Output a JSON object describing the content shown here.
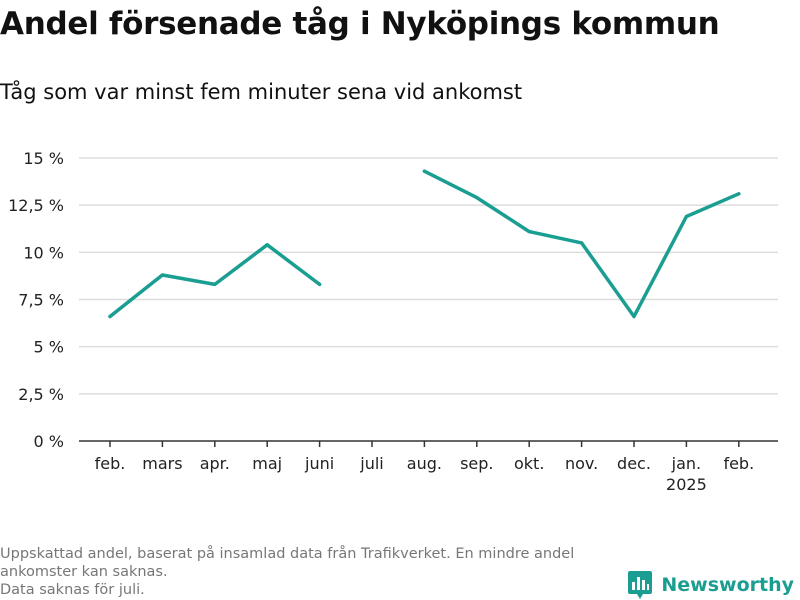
{
  "title": "Andel försenade tåg i Nyköpings kommun",
  "subtitle": "Tåg som var minst fem minuter sena vid ankomst",
  "footnote": {
    "line1": "Uppskattad andel, baserat på insamlad data från Trafikverket. En mindre andel",
    "line2": "ankomster kan saknas.",
    "line3": "Data saknas för juli."
  },
  "brand": {
    "name": "Newsworthy",
    "icon": "bar-chart-logo-icon",
    "color": "#1a9e91"
  },
  "chart_data": {
    "type": "line",
    "title": "Andel försenade tåg i Nyköpings kommun",
    "subtitle": "Tåg som var minst fem minuter sena vid ankomst",
    "categories": [
      "feb.",
      "mars",
      "apr.",
      "maj",
      "juni",
      "juli",
      "aug.",
      "sep.",
      "okt.",
      "nov.",
      "dec.",
      "jan.",
      "feb."
    ],
    "category_sublabels": [
      "",
      "",
      "",
      "",
      "",
      "",
      "",
      "",
      "",
      "",
      "",
      "2025",
      ""
    ],
    "series": [
      {
        "values": [
          6.6,
          8.8,
          8.3,
          10.4,
          8.3,
          null,
          14.3,
          12.9,
          11.1,
          10.5,
          6.6,
          11.9,
          13.1
        ],
        "color": "#1a9e91"
      }
    ],
    "unit": "%",
    "ylim": [
      0,
      15
    ],
    "yticks": [
      0,
      2.5,
      5,
      7.5,
      10,
      12.5,
      15
    ],
    "ytick_labels": [
      "0 %",
      "2,5 %",
      "5 %",
      "7,5 %",
      "10 %",
      "12,5 %",
      "15 %"
    ],
    "grid": true,
    "gridline_color": "#dddddd",
    "axis_color": "#333333"
  }
}
